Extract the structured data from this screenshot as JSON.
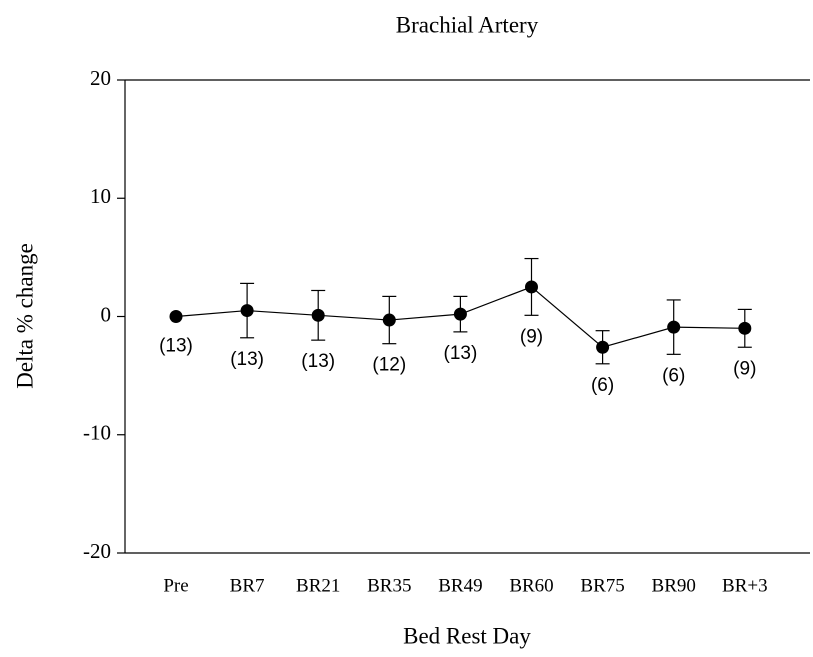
{
  "chart_data": {
    "type": "line",
    "title": "Brachial Artery",
    "x_label": "Bed Rest Day",
    "y_label": "Delta % change",
    "categories": [
      "Pre",
      "BR7",
      "BR21",
      "BR35",
      "BR49",
      "BR60",
      "BR75",
      "BR90",
      "BR+3"
    ],
    "series": [
      {
        "color": "#000000",
        "values": [
          0,
          0.5,
          0.1,
          -0.3,
          0.2,
          2.5,
          -2.6,
          -0.9,
          -1.0
        ],
        "errors": [
          null,
          2.3,
          2.1,
          2.0,
          1.5,
          2.4,
          1.4,
          2.3,
          1.6
        ],
        "n_labels": [
          "(13)",
          "(13)",
          "(13)",
          "(12)",
          "(13)",
          "(9)",
          "(6)",
          "(6)",
          "(9)"
        ]
      }
    ],
    "ylim": [
      -20,
      20
    ],
    "yticks": [
      -20,
      -10,
      0,
      10,
      20
    ],
    "grid": false
  }
}
